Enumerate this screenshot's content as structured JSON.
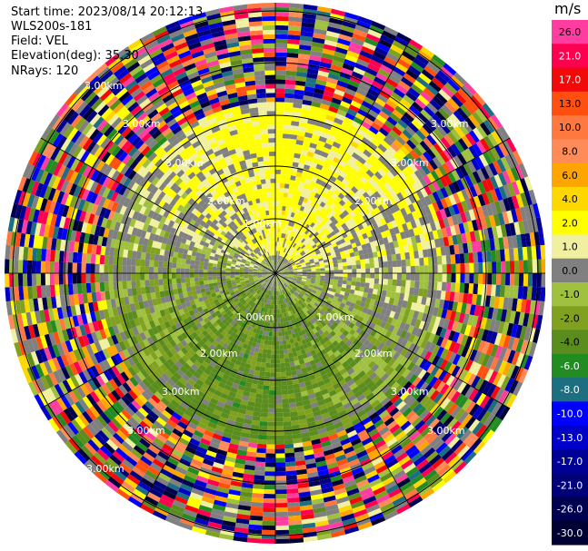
{
  "info": {
    "start_time": "Start time: 2023/08/14 20:12:13",
    "instrument": "WLS200s-181",
    "field": "Field: VEL",
    "elevation": "Elevation(deg): 35.30",
    "nrays": "NRays: 120"
  },
  "colorbar": {
    "title": "m/s",
    "levels": [
      {
        "label": "26.0",
        "color": "#ff3ca0"
      },
      {
        "label": "21.0",
        "color": "#ff0050"
      },
      {
        "label": "17.0",
        "color": "#f20a0a"
      },
      {
        "label": "13.0",
        "color": "#ff5010"
      },
      {
        "label": "10.0",
        "color": "#ff7840"
      },
      {
        "label": "8.0",
        "color": "#ff8c58"
      },
      {
        "label": "6.0",
        "color": "#ffa500"
      },
      {
        "label": "4.0",
        "color": "#ffd700"
      },
      {
        "label": "2.0",
        "color": "#ffff00"
      },
      {
        "label": "1.0",
        "color": "#f0f0a0"
      },
      {
        "label": "0.0",
        "color": "#808080"
      },
      {
        "label": "-1.0",
        "color": "#a0c040"
      },
      {
        "label": "-2.0",
        "color": "#80a020"
      },
      {
        "label": "-4.0",
        "color": "#5a8c1e"
      },
      {
        "label": "-6.0",
        "color": "#228b22"
      },
      {
        "label": "-8.0",
        "color": "#1e6e82"
      },
      {
        "label": "-10.0",
        "color": "#0000ff"
      },
      {
        "label": "-13.0",
        "color": "#0000c8"
      },
      {
        "label": "-17.0",
        "color": "#000096"
      },
      {
        "label": "-21.0",
        "color": "#000078"
      },
      {
        "label": "-26.0",
        "color": "#000050"
      },
      {
        "label": "-30.0",
        "color": "#000032"
      }
    ]
  },
  "chart_data": {
    "type": "heatmap",
    "title": "",
    "xlabel": "",
    "ylabel": "",
    "field": "VEL",
    "units": "m/s",
    "nrays": 120,
    "range_ring_labels": [
      "1.00km",
      "2.00km",
      "3.00km"
    ],
    "grid": true
  }
}
